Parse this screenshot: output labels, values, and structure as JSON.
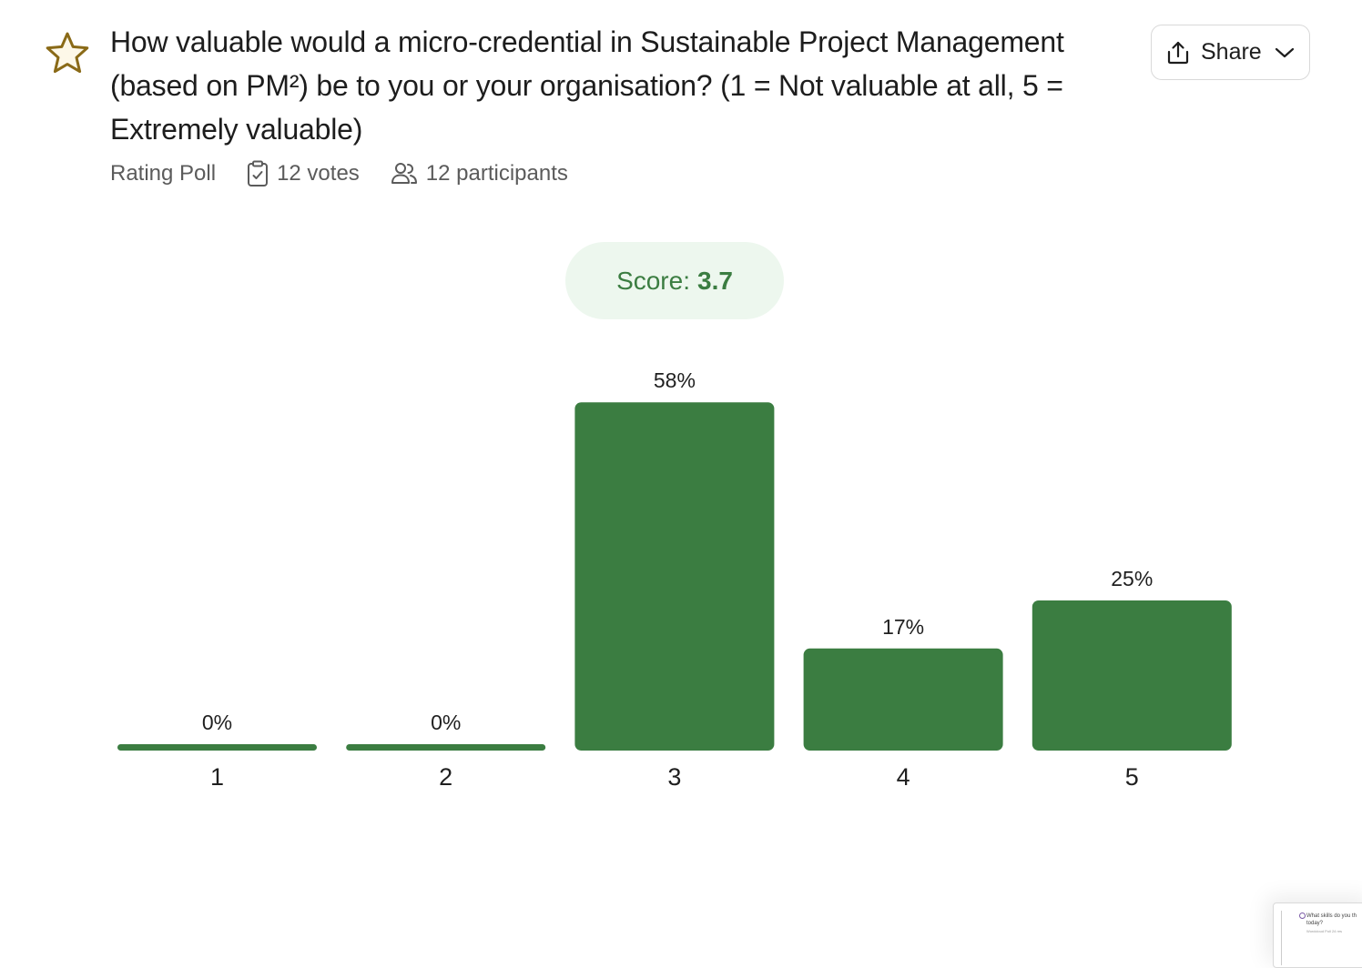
{
  "question": {
    "title": "How valuable would a micro-credential in Sustainable Project Management (based on PM²) be to you or your organisation? (1 = Not valuable at all, 5 = Extremely valuable)",
    "icon": "star-icon"
  },
  "meta": {
    "poll_type": "Rating Poll",
    "votes": "12 votes",
    "participants": "12 participants"
  },
  "share": {
    "label": "Share"
  },
  "score": {
    "label": "Score:",
    "value": "3.7"
  },
  "colors": {
    "bar": "#3b7d41",
    "score_bg": "#edf7ee",
    "star": "#8a6a17"
  },
  "chart_data": {
    "type": "bar",
    "categories": [
      "1",
      "2",
      "3",
      "4",
      "5"
    ],
    "values": [
      0,
      0,
      58,
      17,
      25
    ],
    "labels": [
      "0%",
      "0%",
      "58%",
      "17%",
      "25%"
    ],
    "unit": "%"
  },
  "thumbnail": {
    "title": "What skills do you th today?",
    "meta": "Wordcloud Poll   24 res"
  }
}
